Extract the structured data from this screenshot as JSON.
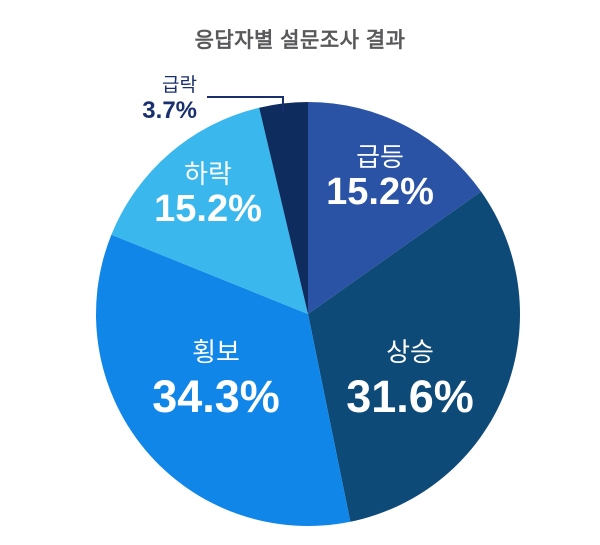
{
  "title": "응답자별 설문조사 결과",
  "colors": {
    "background": "#ffffff",
    "title_text": "#59595b",
    "inside_label_text": "#ffffff",
    "outside_label_text": "#1a2f6e",
    "callout_line": "#1a2f6e"
  },
  "chart_data": {
    "type": "pie",
    "title": "응답자별 설문조사 결과",
    "start_angle_deg": 0,
    "direction": "clockwise",
    "legend": "none",
    "slices": [
      {
        "label": "급등",
        "value": 15.2,
        "pct_text": "15.2%",
        "color": "#2a52a5",
        "label_position": "inside"
      },
      {
        "label": "상승",
        "value": 31.6,
        "pct_text": "31.6%",
        "color": "#0e4a77",
        "label_position": "inside"
      },
      {
        "label": "횡보",
        "value": 34.3,
        "pct_text": "34.3%",
        "color": "#1087e8",
        "label_position": "inside"
      },
      {
        "label": "하락",
        "value": 15.2,
        "pct_text": "15.2%",
        "color": "#3ab7ed",
        "label_position": "inside"
      },
      {
        "label": "급락",
        "value": 3.7,
        "pct_text": "3.7%",
        "color": "#0e2c5e",
        "label_position": "outside-callout"
      }
    ]
  }
}
